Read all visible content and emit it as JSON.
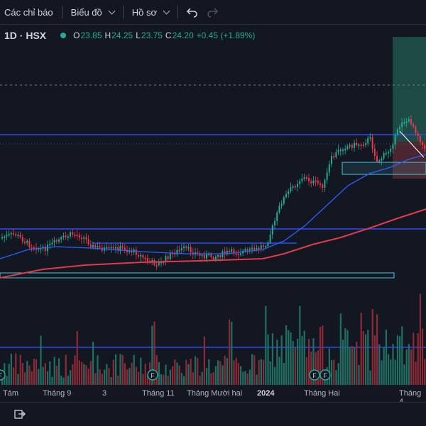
{
  "toolbar": {
    "indicators_label": "Các chỉ báo",
    "chart_label": "Biểu đồ",
    "profile_label": "Hồ sơ"
  },
  "legend": {
    "symbol": "1D · HSX",
    "open_key": "O",
    "open": "23.85",
    "high_key": "H",
    "high": "24.25",
    "low_key": "L",
    "low": "23.75",
    "close_key": "C",
    "close": "24.20",
    "change": "+0.45 (+1.89%)"
  },
  "x_axis": {
    "labels": [
      "Tám",
      "Tháng 9",
      "3",
      "Tháng 11",
      "Tháng Mười hai",
      "2024",
      "Tháng Hai",
      "Tháng 4"
    ]
  },
  "event_markers": [
    "F",
    "F",
    "F",
    "F"
  ],
  "colors": {
    "up": "#22ab94",
    "down": "#f23645",
    "ma_fast": "#2962ff",
    "ma_slow": "#e03a4e",
    "hline": "#2f4cf5",
    "zone": "#4ac7d8"
  },
  "icons": [
    "undo-icon",
    "redo-icon",
    "replay-icon"
  ]
}
